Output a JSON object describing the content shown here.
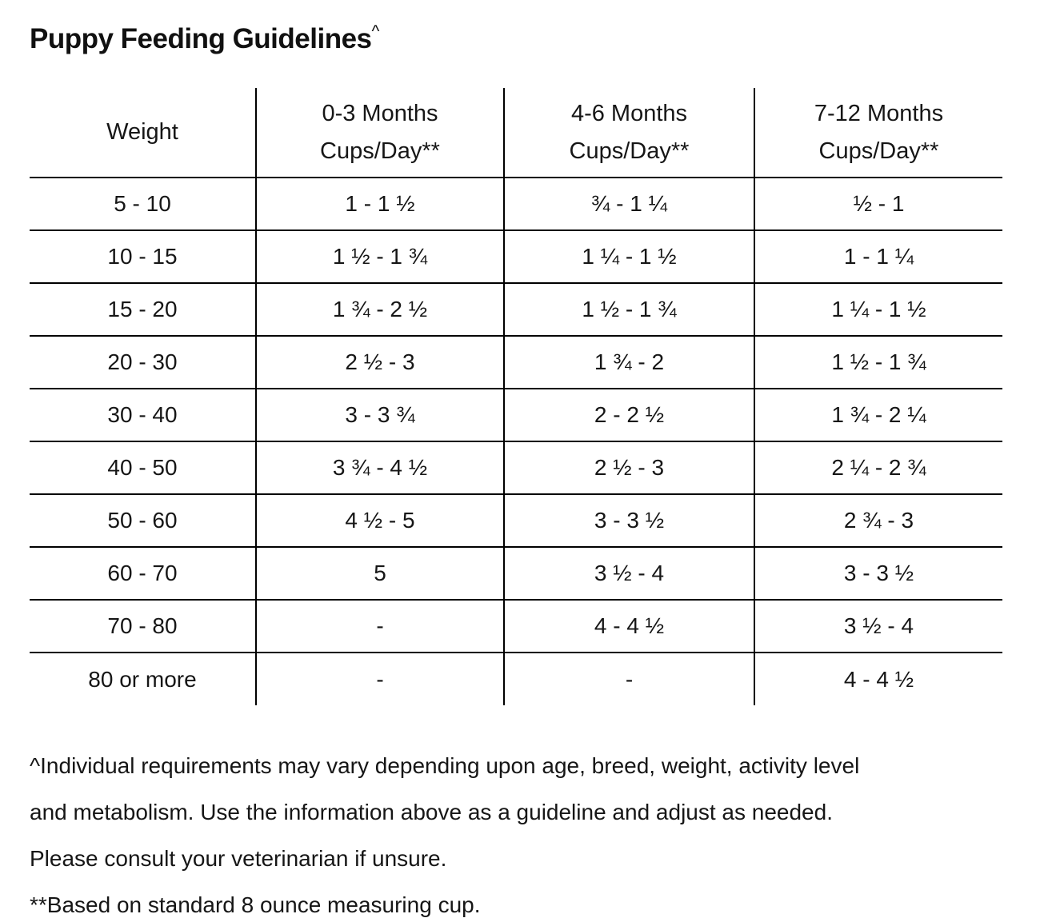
{
  "title": {
    "text": "Puppy Feeding Guidelines",
    "superscript": "^"
  },
  "table": {
    "columns": [
      {
        "id": "weight",
        "lines": [
          "Weight"
        ]
      },
      {
        "id": "months-0-3",
        "lines": [
          "0-3 Months",
          "Cups/Day**"
        ]
      },
      {
        "id": "months-4-6",
        "lines": [
          "4-6 Months",
          "Cups/Day**"
        ]
      },
      {
        "id": "months-7-12",
        "lines": [
          "7-12 Months",
          "Cups/Day**"
        ]
      }
    ],
    "rows": [
      [
        "5 - 10",
        "1 - 1 ½",
        "¾ - 1 ¼",
        "½ - 1"
      ],
      [
        "10 - 15",
        "1 ½ - 1 ¾",
        "1 ¼ - 1 ½",
        "1 - 1 ¼"
      ],
      [
        "15 - 20",
        "1 ¾ - 2 ½",
        "1 ½ - 1 ¾",
        "1 ¼ - 1 ½"
      ],
      [
        "20 - 30",
        "2 ½ - 3",
        "1 ¾ - 2",
        "1 ½ - 1 ¾"
      ],
      [
        "30 - 40",
        "3 - 3 ¾",
        "2 - 2 ½",
        "1 ¾ - 2 ¼"
      ],
      [
        "40 - 50",
        "3 ¾ - 4 ½",
        "2 ½ - 3",
        "2 ¼ - 2 ¾"
      ],
      [
        "50 - 60",
        "4 ½ - 5",
        "3 - 3 ½",
        "2 ¾ - 3"
      ],
      [
        "60 - 70",
        "5",
        "3 ½ - 4",
        "3 - 3 ½"
      ],
      [
        "70 - 80",
        "-",
        "4 - 4 ½",
        "3 ½ - 4"
      ],
      [
        "80 or more",
        "-",
        "-",
        "4 - 4 ½"
      ]
    ]
  },
  "footnotes": {
    "lines": [
      "^Individual requirements may vary depending upon age, breed, weight, activity level",
      "and metabolism. Use the information above as a guideline and adjust as needed.",
      "Please consult your veterinarian if unsure.",
      "**Based on standard 8 ounce measuring cup."
    ]
  },
  "colors": {
    "text": "#141414",
    "table_lines": "#000000",
    "background": "#ffffff"
  }
}
